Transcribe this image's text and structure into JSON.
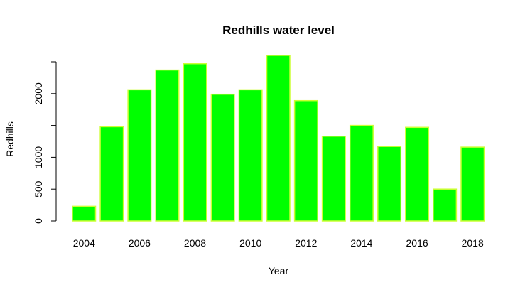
{
  "chart_data": {
    "type": "bar",
    "title": "Redhills water level",
    "xlabel": "Year",
    "ylabel": "Redhills",
    "categories": [
      "2004",
      "2005",
      "2006",
      "2007",
      "2008",
      "2009",
      "2010",
      "2011",
      "2012",
      "2013",
      "2014",
      "2015",
      "2016",
      "2017",
      "2018"
    ],
    "values": [
      230,
      1480,
      2060,
      2370,
      2470,
      1990,
      2060,
      2600,
      1890,
      1330,
      1500,
      1170,
      1470,
      500,
      1160
    ],
    "x_tick_labels": [
      {
        "category": "2004",
        "label": "2004"
      },
      {
        "category": "2006",
        "label": "2006"
      },
      {
        "category": "2008",
        "label": "2008"
      },
      {
        "category": "2010",
        "label": "2010"
      },
      {
        "category": "2012",
        "label": "2012"
      },
      {
        "category": "2014",
        "label": "2014"
      },
      {
        "category": "2016",
        "label": "2016"
      },
      {
        "category": "2018",
        "label": "2018"
      }
    ],
    "y_ticks": [
      0,
      500,
      1000,
      1500,
      2000,
      2500
    ],
    "y_tick_labels": [
      {
        "value": 0,
        "label": "0"
      },
      {
        "value": 500,
        "label": "500"
      },
      {
        "value": 1000,
        "label": "1000"
      },
      {
        "value": 2000,
        "label": "2000"
      }
    ],
    "ylim": [
      0,
      2500
    ],
    "grid": false,
    "colors": {
      "fill": "#00ff00",
      "border": "#ccff33"
    }
  }
}
